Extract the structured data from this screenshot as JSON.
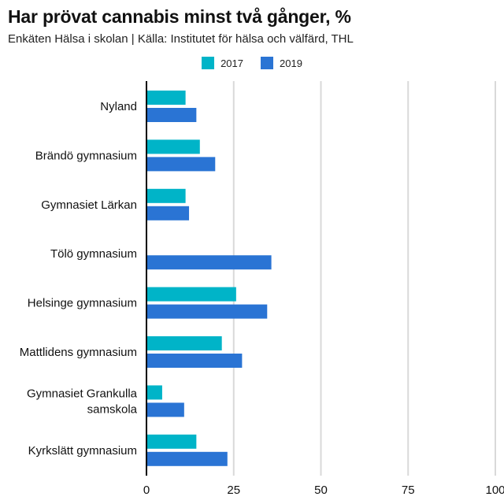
{
  "chart_data": {
    "type": "bar",
    "orientation": "horizontal",
    "title": "Har prövat cannabis minst två gånger, %",
    "subtitle": "Enkäten Hälsa i skolan | Källa: Institutet för hälsa och välfärd, THL",
    "categories": [
      [
        "Nyland"
      ],
      [
        "Brändö gymnasium"
      ],
      [
        "Gymnasiet Lärkan"
      ],
      [
        "Tölö gymnasium"
      ],
      [
        "Helsinge gymnasium"
      ],
      [
        "Mattlidens gymnasium"
      ],
      [
        "Gymnasiet Grankulla",
        "samskola"
      ],
      [
        "Kyrkslätt gymnasium"
      ]
    ],
    "series": [
      {
        "name": "2017",
        "color": "#00b4c8",
        "values": [
          11.2,
          15.3,
          11.2,
          null,
          25.7,
          21.6,
          4.5,
          14.3
        ]
      },
      {
        "name": "2019",
        "color": "#2a74d4",
        "values": [
          14.3,
          19.7,
          12.2,
          35.8,
          34.6,
          27.4,
          10.8,
          23.2
        ]
      }
    ],
    "xlim": [
      0,
      100
    ],
    "xticks": [
      0,
      25,
      50,
      75,
      100
    ],
    "grid": true,
    "legend_position": "top-center"
  }
}
